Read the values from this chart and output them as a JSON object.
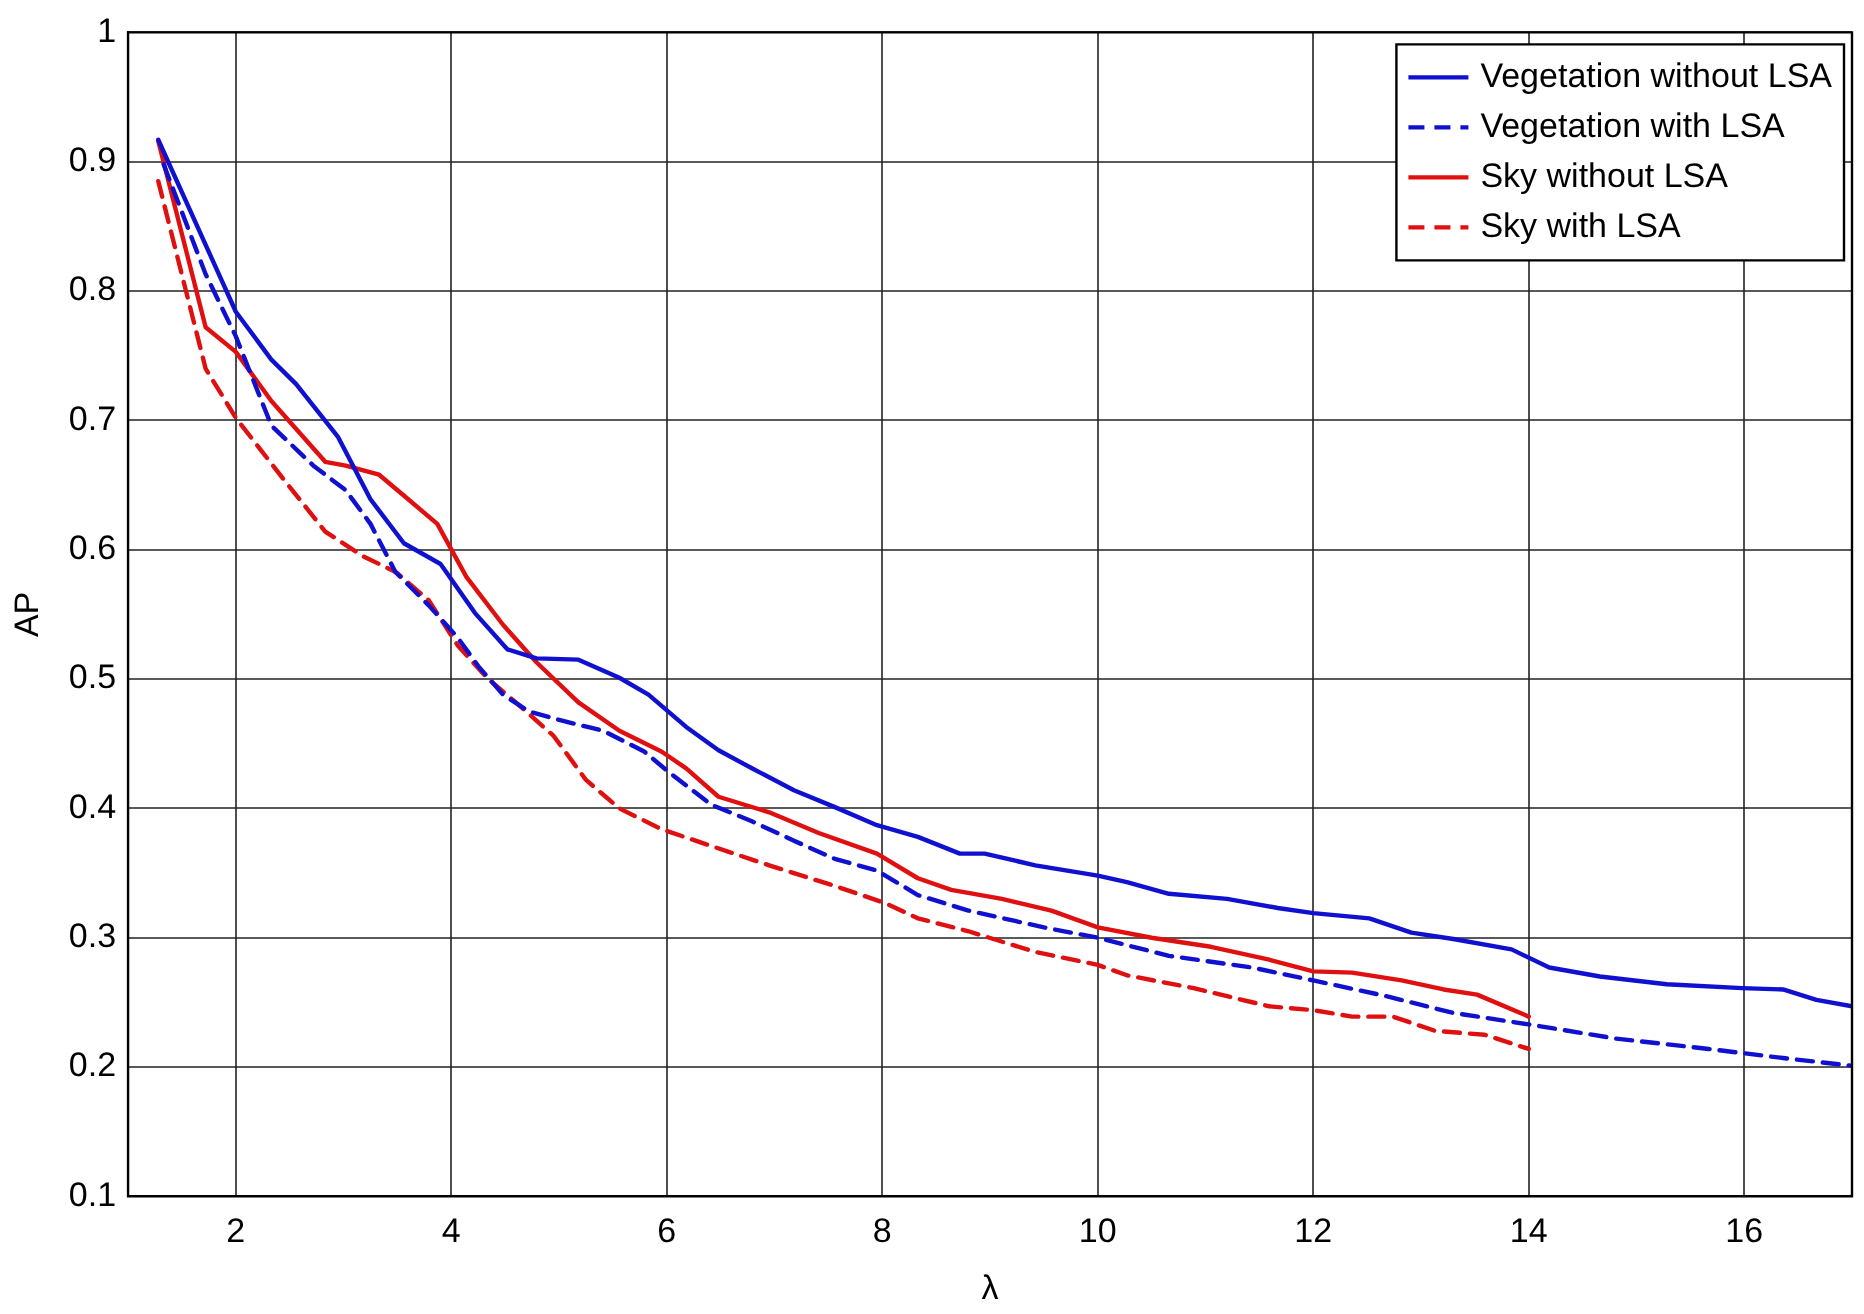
{
  "chart_data": {
    "type": "line",
    "xlabel": "λ",
    "ylabel": "AP",
    "xlim": [
      1,
      17
    ],
    "ylim": [
      0.1,
      1
    ],
    "xticks": [
      2,
      4,
      6,
      8,
      10,
      12,
      14,
      16
    ],
    "yticks": [
      0.1,
      0.2,
      0.3,
      0.4,
      0.5,
      0.6,
      0.7,
      0.8,
      0.9,
      1
    ],
    "grid": true,
    "legend": "top right",
    "marker": "none",
    "series": [
      {
        "name": "Vegetation without LSA",
        "color": "#1010d0",
        "line_style": "solid",
        "x": [
          1.28,
          2,
          2.33,
          2.56,
          2.95,
          3.25,
          3.56,
          3.9,
          4.22,
          4.52,
          4.79,
          5.18,
          5.56,
          5.83,
          6.18,
          6.48,
          6.79,
          7.18,
          7.56,
          7.95,
          8.33,
          8.72,
          8.95,
          9.42,
          10,
          10.27,
          10.66,
          11.2,
          11.67,
          12,
          12.52,
          12.91,
          13.3,
          13.84,
          14.19,
          14.66,
          15.28,
          15.98,
          16.36,
          16.67,
          17
        ],
        "values": [
          0.917,
          0.784,
          0.747,
          0.728,
          0.687,
          0.639,
          0.605,
          0.589,
          0.551,
          0.523,
          0.516,
          0.515,
          0.501,
          0.488,
          0.463,
          0.445,
          0.431,
          0.414,
          0.401,
          0.387,
          0.378,
          0.365,
          0.365,
          0.356,
          0.348,
          0.343,
          0.334,
          0.33,
          0.323,
          0.319,
          0.315,
          0.304,
          0.299,
          0.291,
          0.277,
          0.27,
          0.264,
          0.261,
          0.26,
          0.252,
          0.247
        ]
      },
      {
        "name": "Vegetation with LSA",
        "color": "#1010d0",
        "line_style": "dashed",
        "x": [
          1.33,
          1.72,
          2,
          2.33,
          2.72,
          3.02,
          3.25,
          3.48,
          3.79,
          4.06,
          4.25,
          4.48,
          4.72,
          5.02,
          5.41,
          5.79,
          6.02,
          6.41,
          6.79,
          7.18,
          7.56,
          7.95,
          8.33,
          8.8,
          9.5,
          10,
          10.66,
          11.43,
          12,
          12.67,
          13.29,
          14,
          14.81,
          15.67,
          16.36,
          17
        ],
        "values": [
          0.898,
          0.813,
          0.765,
          0.696,
          0.665,
          0.646,
          0.62,
          0.583,
          0.557,
          0.532,
          0.51,
          0.488,
          0.475,
          0.468,
          0.46,
          0.444,
          0.428,
          0.403,
          0.39,
          0.375,
          0.361,
          0.352,
          0.333,
          0.321,
          0.308,
          0.3,
          0.286,
          0.277,
          0.267,
          0.255,
          0.242,
          0.233,
          0.222,
          0.214,
          0.207,
          0.201
        ]
      },
      {
        "name": "Sky without LSA",
        "color": "#e01010",
        "line_style": "solid",
        "x": [
          1.28,
          1.72,
          2,
          2.33,
          2.83,
          3.02,
          3.33,
          3.6,
          3.87,
          4.14,
          4.48,
          4.79,
          5.18,
          5.56,
          5.95,
          6.18,
          6.48,
          6.95,
          7.41,
          7.95,
          8.33,
          8.64,
          9.11,
          9.57,
          10,
          10.5,
          11.05,
          11.59,
          12,
          12.36,
          12.82,
          13.21,
          13.52,
          14
        ],
        "values": [
          0.916,
          0.772,
          0.753,
          0.715,
          0.668,
          0.665,
          0.658,
          0.639,
          0.62,
          0.579,
          0.542,
          0.513,
          0.482,
          0.46,
          0.444,
          0.431,
          0.409,
          0.397,
          0.381,
          0.365,
          0.346,
          0.337,
          0.33,
          0.321,
          0.308,
          0.3,
          0.293,
          0.283,
          0.274,
          0.273,
          0.267,
          0.26,
          0.256,
          0.239
        ]
      },
      {
        "name": "Sky with LSA",
        "color": "#e01010",
        "line_style": "dashed",
        "x": [
          1.28,
          1.72,
          2,
          2.41,
          2.83,
          3.18,
          3.48,
          3.79,
          4.06,
          4.33,
          4.64,
          4.95,
          5.25,
          5.56,
          5.95,
          6.41,
          6.95,
          7.56,
          8.02,
          8.33,
          8.8,
          9.42,
          10,
          10.27,
          10.89,
          11.59,
          12,
          12.36,
          12.74,
          13.13,
          13.59,
          14
        ],
        "values": [
          0.885,
          0.74,
          0.702,
          0.658,
          0.614,
          0.595,
          0.583,
          0.561,
          0.526,
          0.501,
          0.479,
          0.456,
          0.422,
          0.4,
          0.384,
          0.371,
          0.356,
          0.34,
          0.327,
          0.315,
          0.305,
          0.289,
          0.279,
          0.271,
          0.261,
          0.247,
          0.244,
          0.239,
          0.239,
          0.228,
          0.225,
          0.214
        ]
      }
    ]
  }
}
